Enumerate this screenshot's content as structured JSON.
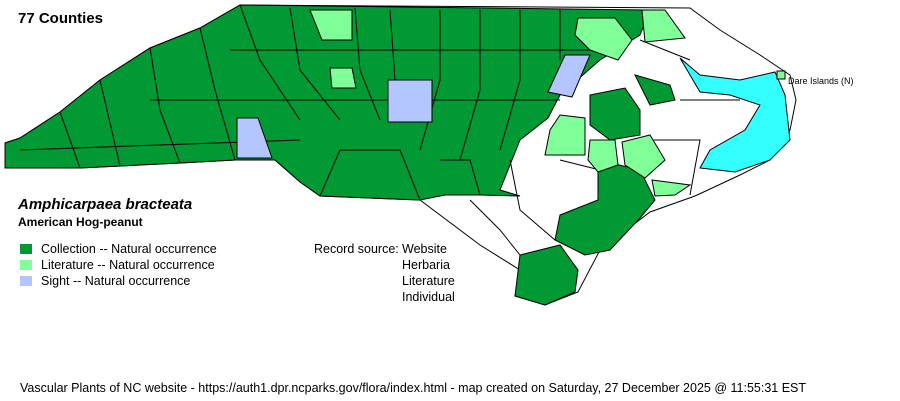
{
  "header": {
    "county_count": "77 Counties"
  },
  "species": {
    "scientific_name": "Amphicarpaea bracteata",
    "common_name": "American Hog-peanut"
  },
  "legend": [
    {
      "label": "Collection -- Natural occurrence",
      "color": "#009933"
    },
    {
      "label": "Literature -- Natural occurrence",
      "color": "#80ff99"
    },
    {
      "label": "Sight -- Natural occurrence",
      "color": "#b3c6ff"
    }
  ],
  "record_source": {
    "label": "Record source:",
    "values": [
      "Website",
      "Herbaria",
      "Literature",
      "Individual"
    ]
  },
  "map": {
    "water_color": "#33ffff",
    "island_label": "Dare Islands (N)"
  },
  "footer": {
    "text": "Vascular Plants of NC website - https://auth1.dpr.ncparks.gov/flora/index.html - map created on Saturday, 27 December 2025 @ 11:55:31 EST"
  }
}
